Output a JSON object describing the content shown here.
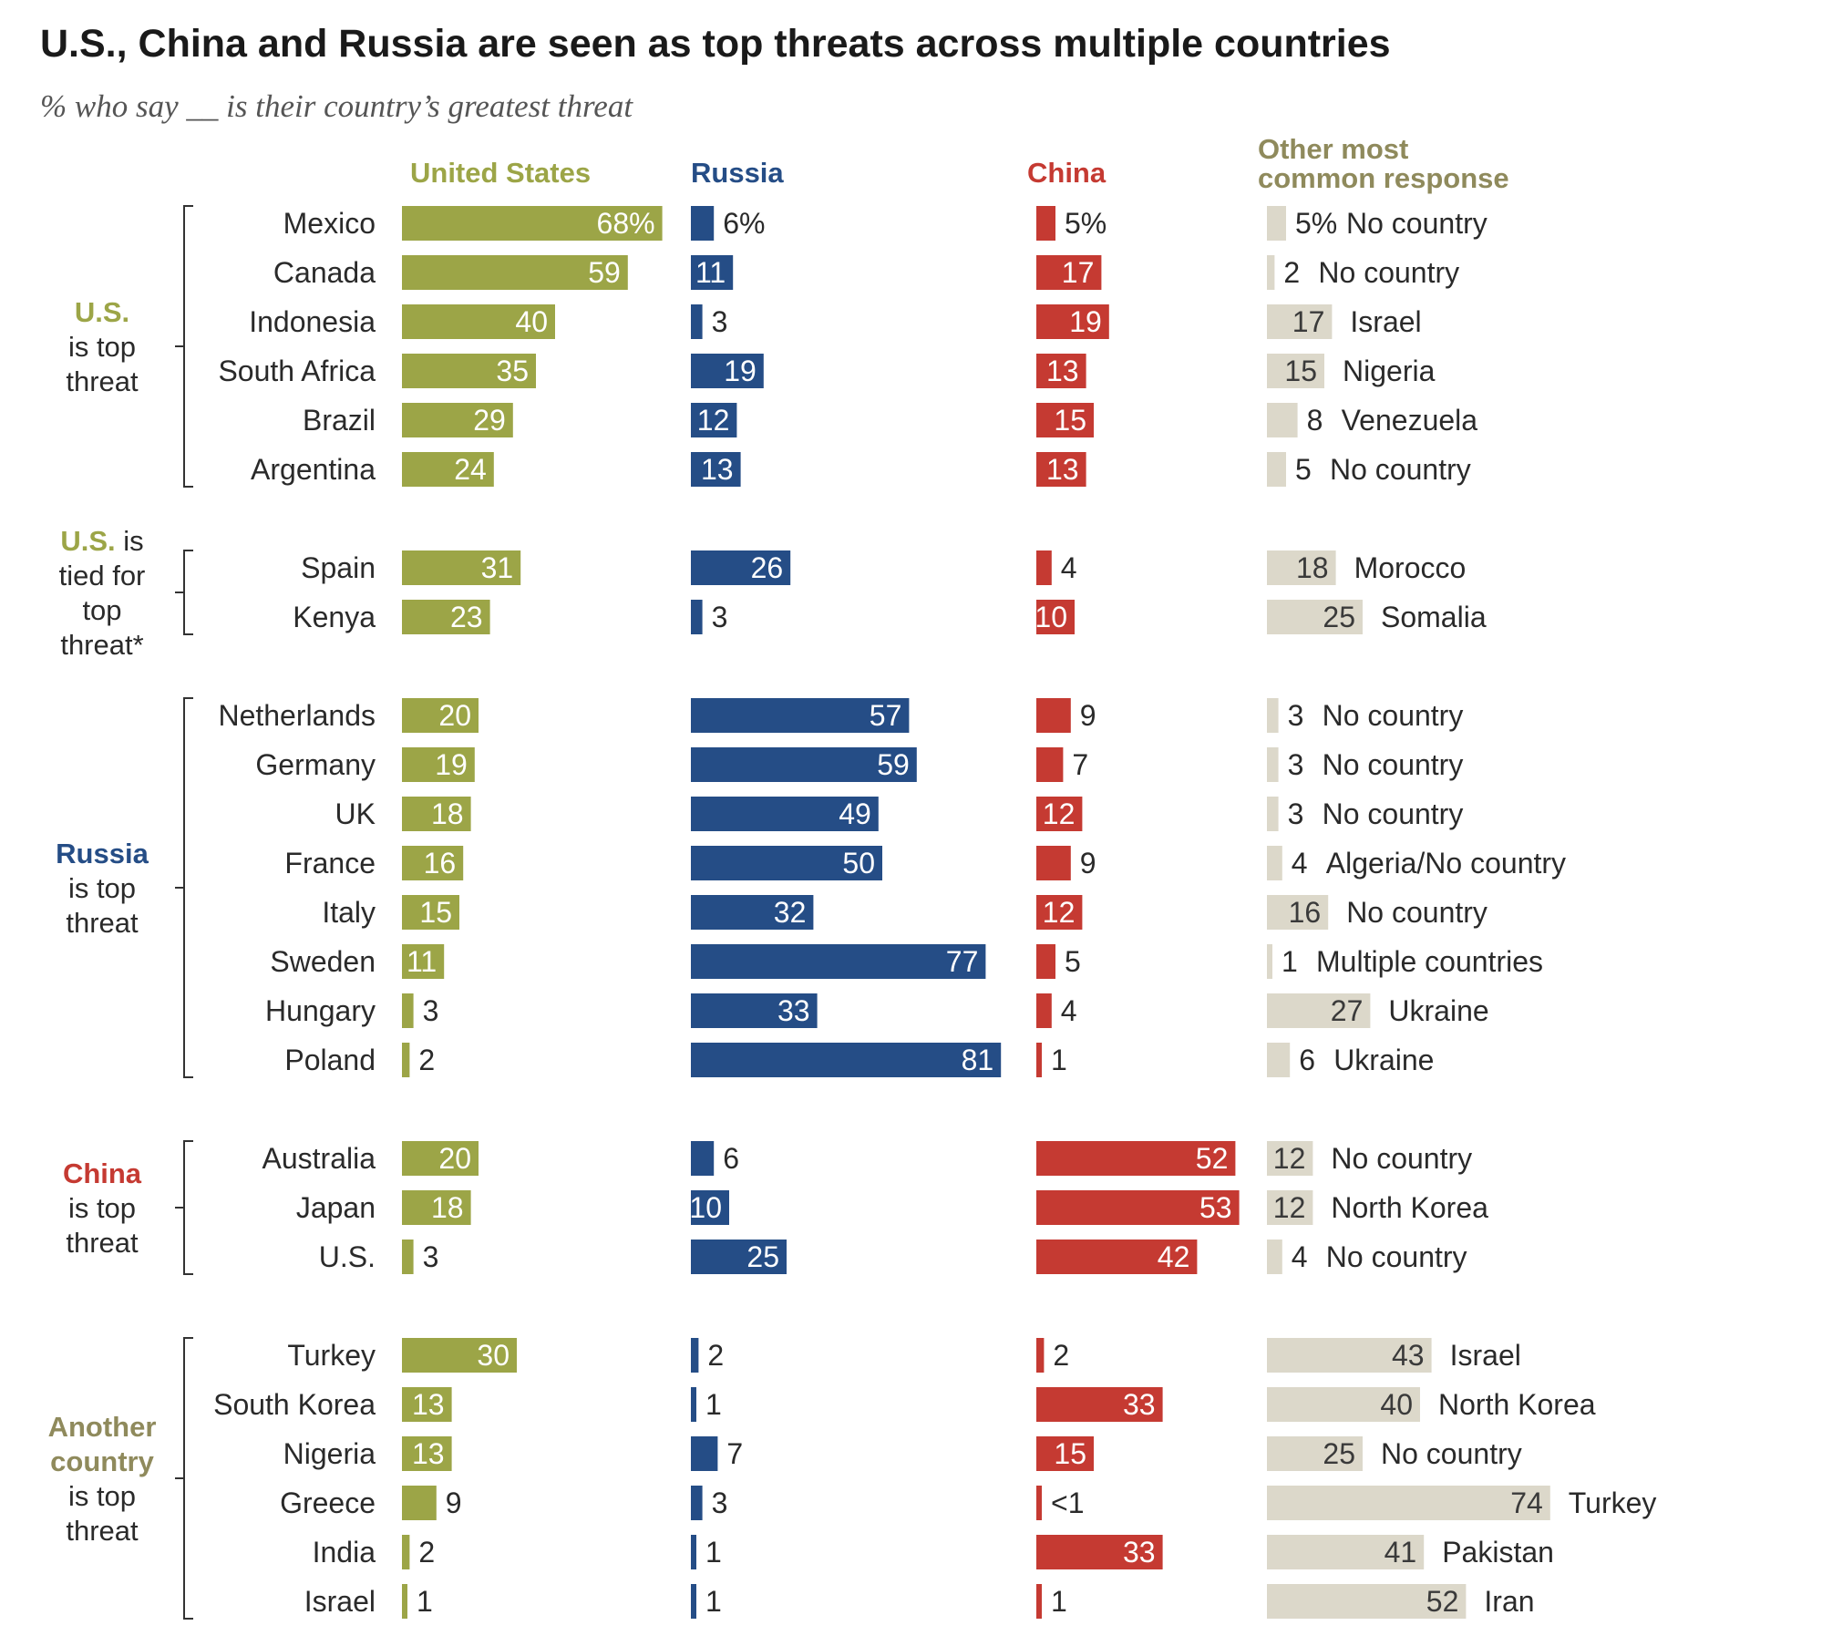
{
  "title": "U.S., China and Russia are seen as top threats across multiple countries",
  "subtitle": "% who say __ is their country’s greatest threat",
  "colors": {
    "us": "#9ca547",
    "russia": "#254d86",
    "china": "#c53a32",
    "other": "#dcd8ca",
    "other_header": "#8f8a5c"
  },
  "chart_data": {
    "type": "bar",
    "columns": [
      "United States",
      "Russia",
      "China",
      "Other most common response"
    ],
    "groups": [
      {
        "label": [
          "U.S.",
          "is top",
          "threat"
        ],
        "rows": [
          {
            "country": "Mexico",
            "us": 68,
            "russia": 6,
            "china": 5,
            "other": 5,
            "other_label": "No country",
            "us_text": "68%",
            "russia_text": "6%",
            "china_text": "5%",
            "other_text": "5%"
          },
          {
            "country": "Canada",
            "us": 59,
            "russia": 11,
            "china": 17,
            "other": 2,
            "other_label": "No country"
          },
          {
            "country": "Indonesia",
            "us": 40,
            "russia": 3,
            "china": 19,
            "other": 17,
            "other_label": "Israel"
          },
          {
            "country": "South Africa",
            "us": 35,
            "russia": 19,
            "china": 13,
            "other": 15,
            "other_label": "Nigeria"
          },
          {
            "country": "Brazil",
            "us": 29,
            "russia": 12,
            "china": 15,
            "other": 8,
            "other_label": "Venezuela"
          },
          {
            "country": "Argentina",
            "us": 24,
            "russia": 13,
            "china": 13,
            "other": 5,
            "other_label": "No country"
          }
        ]
      },
      {
        "label": [
          "U.S. is",
          "tied for",
          "top",
          "threat*"
        ],
        "rows": [
          {
            "country": "Spain",
            "us": 31,
            "russia": 26,
            "china": 4,
            "other": 18,
            "other_label": "Morocco"
          },
          {
            "country": "Kenya",
            "us": 23,
            "russia": 3,
            "china": 10,
            "other": 25,
            "other_label": "Somalia"
          }
        ]
      },
      {
        "label": [
          "Russia",
          "is top",
          "threat"
        ],
        "rows": [
          {
            "country": "Netherlands",
            "us": 20,
            "russia": 57,
            "china": 9,
            "other": 3,
            "other_label": "No country"
          },
          {
            "country": "Germany",
            "us": 19,
            "russia": 59,
            "china": 7,
            "other": 3,
            "other_label": "No country"
          },
          {
            "country": "UK",
            "us": 18,
            "russia": 49,
            "china": 12,
            "other": 3,
            "other_label": "No country"
          },
          {
            "country": "France",
            "us": 16,
            "russia": 50,
            "china": 9,
            "other": 4,
            "other_label": "Algeria/No country"
          },
          {
            "country": "Italy",
            "us": 15,
            "russia": 32,
            "china": 12,
            "other": 16,
            "other_label": "No country"
          },
          {
            "country": "Sweden",
            "us": 11,
            "russia": 77,
            "china": 5,
            "other": 1,
            "other_label": "Multiple countries"
          },
          {
            "country": "Hungary",
            "us": 3,
            "russia": 33,
            "china": 4,
            "other": 27,
            "other_label": "Ukraine"
          },
          {
            "country": "Poland",
            "us": 2,
            "russia": 81,
            "china": 1,
            "other": 6,
            "other_label": "Ukraine"
          }
        ]
      },
      {
        "label": [
          "China",
          "is top",
          "threat"
        ],
        "rows": [
          {
            "country": "Australia",
            "us": 20,
            "russia": 6,
            "china": 52,
            "other": 12,
            "other_label": "No country"
          },
          {
            "country": "Japan",
            "us": 18,
            "russia": 10,
            "china": 53,
            "other": 12,
            "other_label": "North Korea"
          },
          {
            "country": "U.S.",
            "us": 3,
            "russia": 25,
            "china": 42,
            "other": 4,
            "other_label": "No country"
          }
        ]
      },
      {
        "label": [
          "Another",
          "country",
          "is top",
          "threat"
        ],
        "rows": [
          {
            "country": "Turkey",
            "us": 30,
            "russia": 2,
            "china": 2,
            "other": 43,
            "other_label": "Israel"
          },
          {
            "country": "South Korea",
            "us": 13,
            "russia": 1,
            "china": 33,
            "other": 40,
            "other_label": "North Korea"
          },
          {
            "country": "Nigeria",
            "us": 13,
            "russia": 7,
            "china": 15,
            "other": 25,
            "other_label": "No country"
          },
          {
            "country": "Greece",
            "us": 9,
            "russia": 3,
            "china": 0.3,
            "other": 74,
            "other_label": "Turkey",
            "china_text": "<1"
          },
          {
            "country": "India",
            "us": 2,
            "russia": 1,
            "china": 33,
            "other": 41,
            "other_label": "Pakistan"
          },
          {
            "country": "Israel",
            "us": 1,
            "russia": 1,
            "china": 1,
            "other": 52,
            "other_label": "Iran"
          }
        ]
      }
    ]
  }
}
